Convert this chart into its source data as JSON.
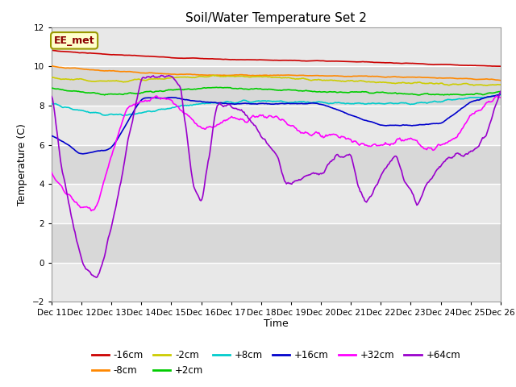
{
  "title": "Soil/Water Temperature Set 2",
  "xlabel": "Time",
  "ylabel": "Temperature (C)",
  "ylim": [
    -2,
    12
  ],
  "yticks": [
    -2,
    0,
    2,
    4,
    6,
    8,
    10,
    12
  ],
  "xtick_labels": [
    "Dec 11",
    "Dec 12",
    "Dec 13",
    "Dec 14",
    "Dec 15",
    "Dec 16",
    "Dec 17",
    "Dec 18",
    "Dec 19",
    "Dec 20",
    "Dec 21",
    "Dec 22",
    "Dec 23",
    "Dec 24",
    "Dec 25",
    "Dec 26"
  ],
  "legend_label": "EE_met",
  "background_color": "#ffffff",
  "series": [
    {
      "label": "-16cm",
      "color": "#cc0000"
    },
    {
      "label": "-8cm",
      "color": "#ff8800"
    },
    {
      "label": "-2cm",
      "color": "#cccc00"
    },
    {
      "label": "+2cm",
      "color": "#00cc00"
    },
    {
      "label": "+8cm",
      "color": "#00cccc"
    },
    {
      "label": "+16cm",
      "color": "#0000cc"
    },
    {
      "label": "+32cm",
      "color": "#ff00ff"
    },
    {
      "label": "+64cm",
      "color": "#9900cc"
    }
  ],
  "band_colors": [
    "#e8e8e8",
    "#d8d8d8"
  ],
  "grid_line_color": "#ffffff"
}
